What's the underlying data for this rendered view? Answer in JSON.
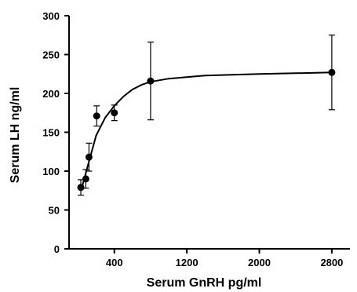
{
  "chart_data": {
    "type": "scatter",
    "xlabel": "Serum GnRH pg/ml",
    "ylabel": "Serum LH ng/ml",
    "xlim": [
      -100,
      3000
    ],
    "ylim": [
      0,
      300
    ],
    "x_ticks": [
      400,
      1200,
      2000,
      2800
    ],
    "x_tick_labels": [
      "400",
      "1200",
      "2000",
      "2800"
    ],
    "y_ticks": [
      0,
      50,
      100,
      150,
      200,
      250,
      300
    ],
    "y_tick_labels": [
      "0",
      "50",
      "100",
      "150",
      "200",
      "250",
      "300"
    ],
    "points": [
      {
        "x": 30,
        "y": 79,
        "err": 10
      },
      {
        "x": 85,
        "y": 90,
        "err": 12
      },
      {
        "x": 120,
        "y": 118,
        "err": 18
      },
      {
        "x": 205,
        "y": 171,
        "err": 13
      },
      {
        "x": 400,
        "y": 175,
        "err": 10
      },
      {
        "x": 800,
        "y": 216,
        "err": 50
      },
      {
        "x": 2800,
        "y": 227,
        "err": 48
      }
    ],
    "curve": {
      "type": "fitted",
      "x": [
        40,
        100,
        200,
        300,
        400,
        500,
        600,
        700,
        800,
        1000,
        1400,
        2000,
        2800
      ],
      "y": [
        78,
        104,
        146,
        169,
        184,
        196,
        205,
        211,
        215,
        219,
        223,
        225,
        227
      ]
    },
    "grid": false,
    "legend": "none"
  }
}
